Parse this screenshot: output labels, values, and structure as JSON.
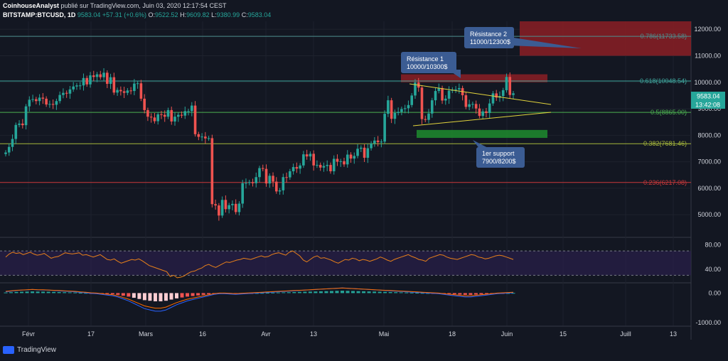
{
  "header": {
    "author": "CoinhouseAnalyst",
    "published_text": "publié sur TradingView.com, Juin 03, 2020 12:17:54 CEST",
    "symbol": "BITSTAMP:BTCUSD, 1D",
    "last": "9583.04",
    "change": "+57.31 (+0.6%)",
    "o_label": "O:",
    "o_value": "9522.52",
    "h_label": "H:",
    "h_value": "9609.82",
    "l_label": "L:",
    "l_value": "9380.99",
    "c_label": "C:",
    "c_value": "9583.04"
  },
  "annotations": {
    "resistance1_title": "Résistance 1",
    "resistance1_range": "10000/10300$",
    "resistance2_title": "Résistance 2",
    "resistance2_range": "11000/12300$",
    "support_title": "1er support",
    "support_range": "7900/8200$"
  },
  "price_badge": "9583.04",
  "countdown_badge": "13:42:08",
  "footer": {
    "brand": "TradingView"
  },
  "colors": {
    "background": "#131722",
    "up": "#26a69a",
    "down": "#ef5350",
    "resistance_zone": "#8b1e24",
    "support_zone": "#1e8c2e",
    "rsi": "#e8801a"
  },
  "chart_data": [
    {
      "type": "candlestick",
      "title": "BITSTAMP:BTCUSD, 1D",
      "ylim": [
        4200,
        12300
      ],
      "yticks": [
        "12000.00",
        "11000.00",
        "10000.00",
        "9000.00",
        "8000.00",
        "7000.00",
        "6000.00",
        "5000.00"
      ],
      "xticks": [
        "Févr",
        "17",
        "Mars",
        "16",
        "Avr",
        "13",
        "Mai",
        "18",
        "Juin",
        "15",
        "Juill",
        "13"
      ],
      "fib_levels": [
        {
          "label": "0.786(11733.58)",
          "value": 11733.58,
          "color": "#4e8f8f"
        },
        {
          "label": "0.618(10048.54)",
          "value": 10048.54,
          "color": "#3fa79e"
        },
        {
          "label": "0.5(8865.00)",
          "value": 8865.0,
          "color": "#4caf50"
        },
        {
          "label": "0.382(7681.46)",
          "value": 7681.46,
          "color": "#a6b73b"
        },
        {
          "label": "0.236(6217.08)",
          "value": 6217.08,
          "color": "#c9383a"
        }
      ],
      "zones": [
        {
          "name": "Résistance 1",
          "from": 10000,
          "to": 10300
        },
        {
          "name": "Résistance 2",
          "from": 11000,
          "to": 12300
        },
        {
          "name": "1er support",
          "from": 7900,
          "to": 8200
        }
      ],
      "closes": [
        7350,
        7560,
        7860,
        8390,
        8440,
        8380,
        9090,
        9340,
        9360,
        9290,
        9420,
        9380,
        9160,
        9180,
        9150,
        9290,
        9520,
        9600,
        9570,
        9730,
        9840,
        9880,
        9880,
        10160,
        9920,
        10260,
        10200,
        10300,
        10190,
        10360,
        9940,
        10190,
        9610,
        9710,
        9660,
        9600,
        9690,
        9670,
        9950,
        9960,
        9380,
        8950,
        8700,
        8670,
        8530,
        8790,
        8770,
        8700,
        8950,
        8520,
        8700,
        8770,
        8740,
        8910,
        8910,
        9120,
        8040,
        7940,
        7950,
        7880,
        7890,
        5400,
        5350,
        4970,
        5560,
        5210,
        5360,
        5410,
        5100,
        5420,
        6190,
        6200,
        6230,
        6190,
        6420,
        6760,
        6730,
        6180,
        6470,
        6250,
        5880,
        5920,
        6420,
        6410,
        6640,
        6800,
        6740,
        6860,
        7280,
        7200,
        7300,
        6860,
        6880,
        6780,
        6840,
        6880,
        6640,
        7110,
        7000,
        7020,
        6900,
        7270,
        7120,
        7220,
        7490,
        7530,
        7150,
        7510,
        7690,
        7800,
        7740,
        7760,
        8810,
        9320,
        8620,
        8840,
        8880,
        8990,
        9020,
        9140,
        9500,
        9990,
        9800,
        8610,
        8580,
        8820,
        9320,
        9670,
        9780,
        9310,
        9380,
        9680,
        9720,
        9730,
        9780,
        9510,
        9070,
        9170,
        9180,
        9010,
        8730,
        8900,
        8840,
        9200,
        9580,
        9420,
        9480,
        9700,
        10200,
        9520,
        9583
      ]
    },
    {
      "type": "line",
      "title": "RSI",
      "ylim": [
        20,
        90
      ],
      "yticks": [
        "80.00",
        "40.00"
      ],
      "bands": [
        70,
        30
      ],
      "values": [
        60,
        65,
        68,
        66,
        67,
        64,
        66,
        68,
        65,
        63,
        64,
        66,
        62,
        58,
        60,
        61,
        64,
        67,
        66,
        65,
        66,
        67,
        63,
        64,
        62,
        60,
        62,
        64,
        60,
        56,
        55,
        57,
        53,
        50,
        52,
        54,
        56,
        55,
        57,
        54,
        50,
        46,
        44,
        42,
        40,
        38,
        36,
        28,
        30,
        26,
        27,
        29,
        33,
        36,
        37,
        40,
        42,
        46,
        48,
        45,
        43,
        46,
        49,
        52,
        51,
        53,
        55,
        56,
        58,
        57,
        56,
        58,
        60,
        62,
        60,
        61,
        64,
        66,
        67,
        65,
        63,
        68,
        70,
        66,
        62,
        55,
        52,
        56,
        60,
        62,
        58,
        59,
        57,
        55,
        52,
        50,
        53,
        56,
        55,
        58,
        57,
        54,
        56,
        55,
        53,
        55,
        57,
        60,
        58,
        55,
        53,
        56,
        58,
        60,
        62,
        64,
        61,
        59,
        56,
        55,
        53,
        58,
        60,
        62,
        64,
        63,
        60,
        58,
        57,
        56,
        58,
        60,
        62,
        64,
        63,
        60,
        59,
        57,
        58,
        60,
        62,
        63,
        62,
        60,
        58,
        56
      ]
    },
    {
      "type": "bar",
      "title": "MACD",
      "ylim": [
        -1100,
        300
      ],
      "yticks": [
        "0.00",
        "-1000.00"
      ],
      "histogram": [
        20,
        30,
        40,
        45,
        50,
        55,
        50,
        48,
        45,
        40,
        35,
        30,
        25,
        20,
        10,
        5,
        -5,
        -10,
        -20,
        -30,
        -40,
        -60,
        -90,
        -120,
        -160,
        -200,
        -240,
        -260,
        -280,
        -280,
        -260,
        -220,
        -180,
        -150,
        -120,
        -100,
        -80,
        -60,
        -40,
        -20,
        -10,
        -10,
        -15,
        -20,
        -15,
        -10,
        -5,
        0,
        5,
        10,
        15,
        20,
        25,
        30,
        35,
        40,
        45,
        50,
        55,
        60,
        65,
        70,
        75,
        80,
        75,
        70,
        65,
        60,
        55,
        50,
        45,
        40,
        35,
        30,
        25,
        20,
        15,
        10,
        5,
        0,
        -5,
        -10,
        -20,
        -30,
        -40,
        -50,
        -60,
        -60,
        -50,
        -40,
        -30,
        -20,
        -10,
        -5,
        0,
        5
      ]
    }
  ]
}
